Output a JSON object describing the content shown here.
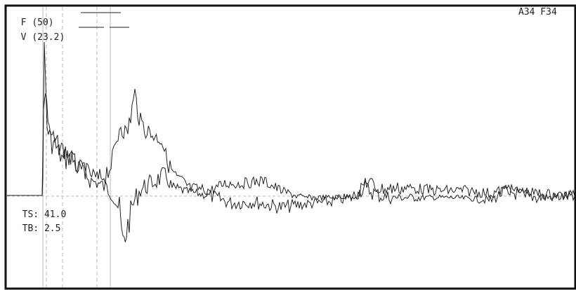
{
  "legend": {
    "force": {
      "label": "F",
      "scale": "(50)"
    },
    "velocity": {
      "label": "V",
      "scale": "(23.2)"
    }
  },
  "record_id": "A34 F34",
  "markers": {
    "ts": {
      "label": "TS:",
      "value": "41.0"
    },
    "tb": {
      "label": "TB:",
      "value": "2.5"
    }
  },
  "colors": {
    "trace": "#222222",
    "grid": "#bbbbbb",
    "frame": "#111111"
  }
}
